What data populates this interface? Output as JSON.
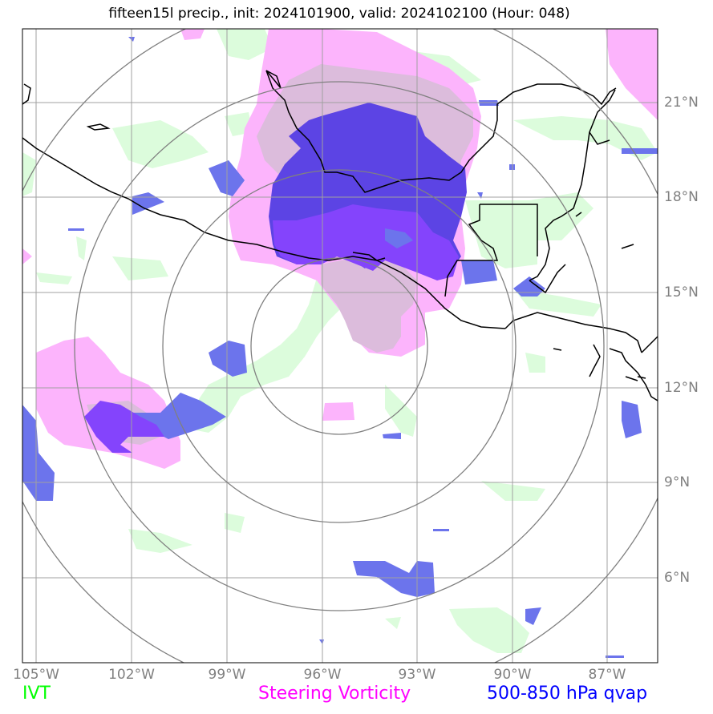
{
  "title": "fifteen15l precip., init: 2024101900, valid: 2024102100 (Hour: 048)",
  "lat_labels": [
    "21°N",
    "18°N",
    "15°N",
    "12°N",
    "9°N",
    "6°N"
  ],
  "lon_labels": [
    "105°W",
    "102°W",
    "99°W",
    "96°W",
    "93°W",
    "90°W",
    "87°W"
  ],
  "legend": {
    "ivt": {
      "label": "IVT",
      "color": "#00ff00"
    },
    "vort": {
      "label": "Steering Vorticity",
      "color": "#ff00ff"
    },
    "qvap": {
      "label": "500-850 hPa qvap",
      "color": "#0000ff"
    }
  },
  "colors": {
    "ivt_fill": "#dcfcdc",
    "vort_fill": "#fcb4fc",
    "vort_dim": "#dcbcdc",
    "qvap_fill": "#6c74ec",
    "qvap_strong": "#5c44e4",
    "qvap_violet": "#8444fc",
    "grid": "#a0a0a0",
    "range_rings": "#808080",
    "coastline": "#000000"
  }
}
